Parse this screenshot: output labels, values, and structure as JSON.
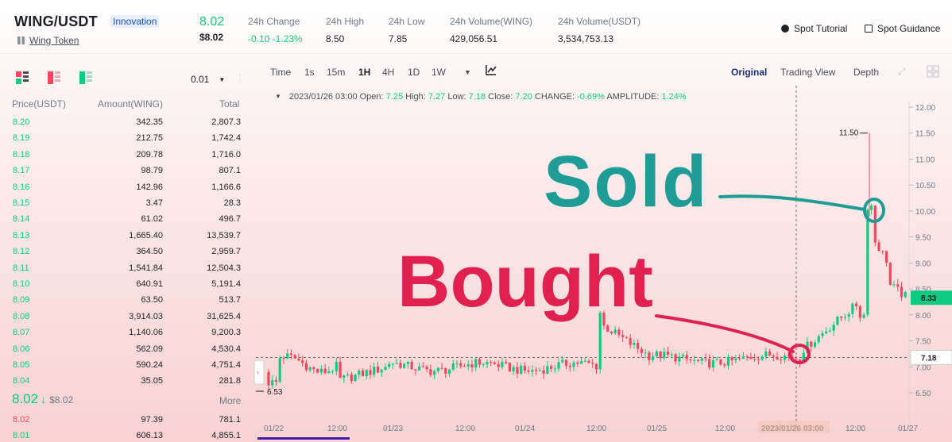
{
  "header": {
    "pair": "WING/USDT",
    "badge": "Innovation",
    "token_name": "Wing Token",
    "last_price": "8.02",
    "last_price_usd": "$8.02",
    "stats": [
      {
        "key": "24h Change",
        "value": "-0.10 -1.23%"
      },
      {
        "key": "24h High",
        "value": "8.50"
      },
      {
        "key": "24h Low",
        "value": "7.85"
      },
      {
        "key": "24h Volume(WING)",
        "value": "429,056.51"
      },
      {
        "key": "24h Volume(USDT)",
        "value": "3,534,753.13"
      }
    ],
    "spot_tutorial": "Spot Tutorial",
    "spot_guidance": "Spot Guidance"
  },
  "orderbook": {
    "precision": "0.01",
    "headers": {
      "price": "Price(USDT)",
      "amount": "Amount(WING)",
      "total": "Total"
    },
    "rows": [
      {
        "price": "8.20",
        "amount": "342.35",
        "total": "2,807.3"
      },
      {
        "price": "8.19",
        "amount": "212.75",
        "total": "1,742.4"
      },
      {
        "price": "8.18",
        "amount": "209.78",
        "total": "1,716.0"
      },
      {
        "price": "8.17",
        "amount": "98.79",
        "total": "807.1"
      },
      {
        "price": "8.16",
        "amount": "142.96",
        "total": "1,166.6"
      },
      {
        "price": "8.15",
        "amount": "3.47",
        "total": "28.3"
      },
      {
        "price": "8.14",
        "amount": "61.02",
        "total": "496.7"
      },
      {
        "price": "8.13",
        "amount": "1,665.40",
        "total": "13,539.7"
      },
      {
        "price": "8.12",
        "amount": "364.50",
        "total": "2,959.7"
      },
      {
        "price": "8.11",
        "amount": "1,541.84",
        "total": "12,504.3"
      },
      {
        "price": "8.10",
        "amount": "640.91",
        "total": "5,191.4"
      },
      {
        "price": "8.09",
        "amount": "63.50",
        "total": "513.7"
      },
      {
        "price": "8.08",
        "amount": "3,914.03",
        "total": "31,625.4"
      },
      {
        "price": "8.07",
        "amount": "1,140.06",
        "total": "9,200.3"
      },
      {
        "price": "8.06",
        "amount": "562.09",
        "total": "4,530.4"
      },
      {
        "price": "8.05",
        "amount": "590.24",
        "total": "4,751.4"
      },
      {
        "price": "8.04",
        "amount": "35.05",
        "total": "281.8"
      }
    ],
    "mid_price": "8.02",
    "mid_arrow": "↓",
    "mid_price_usd": "$8.02",
    "more": "More",
    "bid_rows": [
      {
        "price": "8.02",
        "amount": "97.39",
        "total": "781.1"
      },
      {
        "price": "8.01",
        "amount": "606.13",
        "total": "4,855.1"
      }
    ],
    "colors": {
      "ask": "#f6465d",
      "bid": "#0ecb81"
    }
  },
  "chart_toolbar": {
    "timeframes": [
      "Time",
      "1s",
      "15m",
      "1H",
      "4H",
      "1D",
      "1W"
    ],
    "active_timeframe": "1H",
    "views": [
      "Original",
      "Trading View",
      "Depth"
    ],
    "active_view": "Original"
  },
  "ohlc": {
    "date": "2023/01/26 03:00",
    "open_label": "Open:",
    "open": "7.25",
    "high_label": "High:",
    "high": "7.27",
    "low_label": "Low:",
    "low": "7.18",
    "close_label": "Close:",
    "close": "7.20",
    "change_label": "CHANGE:",
    "change": "-0.69%",
    "amplitude_label": "AMPLITUDE:",
    "amplitude": "1.24%"
  },
  "chart_data": {
    "type": "candlestick",
    "y_ticks": [
      "12.00",
      "11.50",
      "11.00",
      "10.50",
      "10.00",
      "9.50",
      "9.00",
      "8.50",
      "8.00",
      "7.50",
      "7.00",
      "6.50"
    ],
    "ylim": [
      6.1,
      12.2
    ],
    "x_ticks": [
      "01/22",
      "12:00",
      "01/23",
      "12:00",
      "01/24",
      "12:00",
      "01/25",
      "12:00",
      "2023/01/26 03:00",
      "12:00",
      "01/27"
    ],
    "current_price_label": "8.33",
    "crosshair_price_label": "7.18",
    "high_marker": "11.50",
    "low_marker": "6.53",
    "annotations": [
      "Sold",
      "Bought"
    ],
    "colors": {
      "up": "#0ecb81",
      "down": "#f6465d",
      "sold_text": "#1f9c95",
      "bought_text": "#e0204f"
    }
  }
}
